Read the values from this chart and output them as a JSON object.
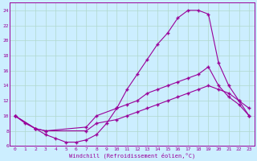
{
  "xlabel": "Windchill (Refroidissement éolien,°C)",
  "bg_color": "#cceeff",
  "line_color": "#990099",
  "grid_color": "#b0d8cc",
  "xlim": [
    -0.5,
    23.5
  ],
  "ylim": [
    6,
    25
  ],
  "xticks": [
    0,
    1,
    2,
    3,
    4,
    5,
    6,
    7,
    8,
    9,
    10,
    11,
    12,
    13,
    14,
    15,
    16,
    17,
    18,
    19,
    20,
    21,
    22,
    23
  ],
  "yticks": [
    6,
    8,
    10,
    12,
    14,
    16,
    18,
    20,
    22,
    24
  ],
  "curve1_x": [
    0,
    1,
    2,
    3,
    4,
    5,
    6,
    7,
    8,
    9,
    10,
    11,
    12,
    13,
    14,
    15,
    16,
    17,
    18,
    19,
    20,
    21,
    22,
    23
  ],
  "curve1_y": [
    10,
    9,
    8.3,
    7.5,
    7,
    6.5,
    6.5,
    6.8,
    7.5,
    9,
    11,
    13.5,
    15.5,
    17.5,
    19.5,
    21,
    23,
    24,
    24,
    23.5,
    17,
    14,
    12,
    11
  ],
  "curve2_x": [
    0,
    2,
    3,
    7,
    8,
    10,
    11,
    12,
    13,
    14,
    15,
    16,
    17,
    18,
    19,
    20,
    21,
    22,
    23
  ],
  "curve2_y": [
    10,
    8.3,
    8,
    8.5,
    10,
    11,
    11.5,
    12,
    13,
    13.5,
    14,
    14.5,
    15,
    15.5,
    16.5,
    14,
    12.5,
    11.5,
    10
  ],
  "curve3_x": [
    0,
    2,
    3,
    7,
    8,
    10,
    11,
    12,
    13,
    14,
    15,
    16,
    17,
    18,
    19,
    20,
    21,
    22,
    23
  ],
  "curve3_y": [
    10,
    8.3,
    8,
    8,
    9,
    9.5,
    10,
    10.5,
    11,
    11.5,
    12,
    12.5,
    13,
    13.5,
    14,
    13.5,
    13,
    12,
    10
  ]
}
